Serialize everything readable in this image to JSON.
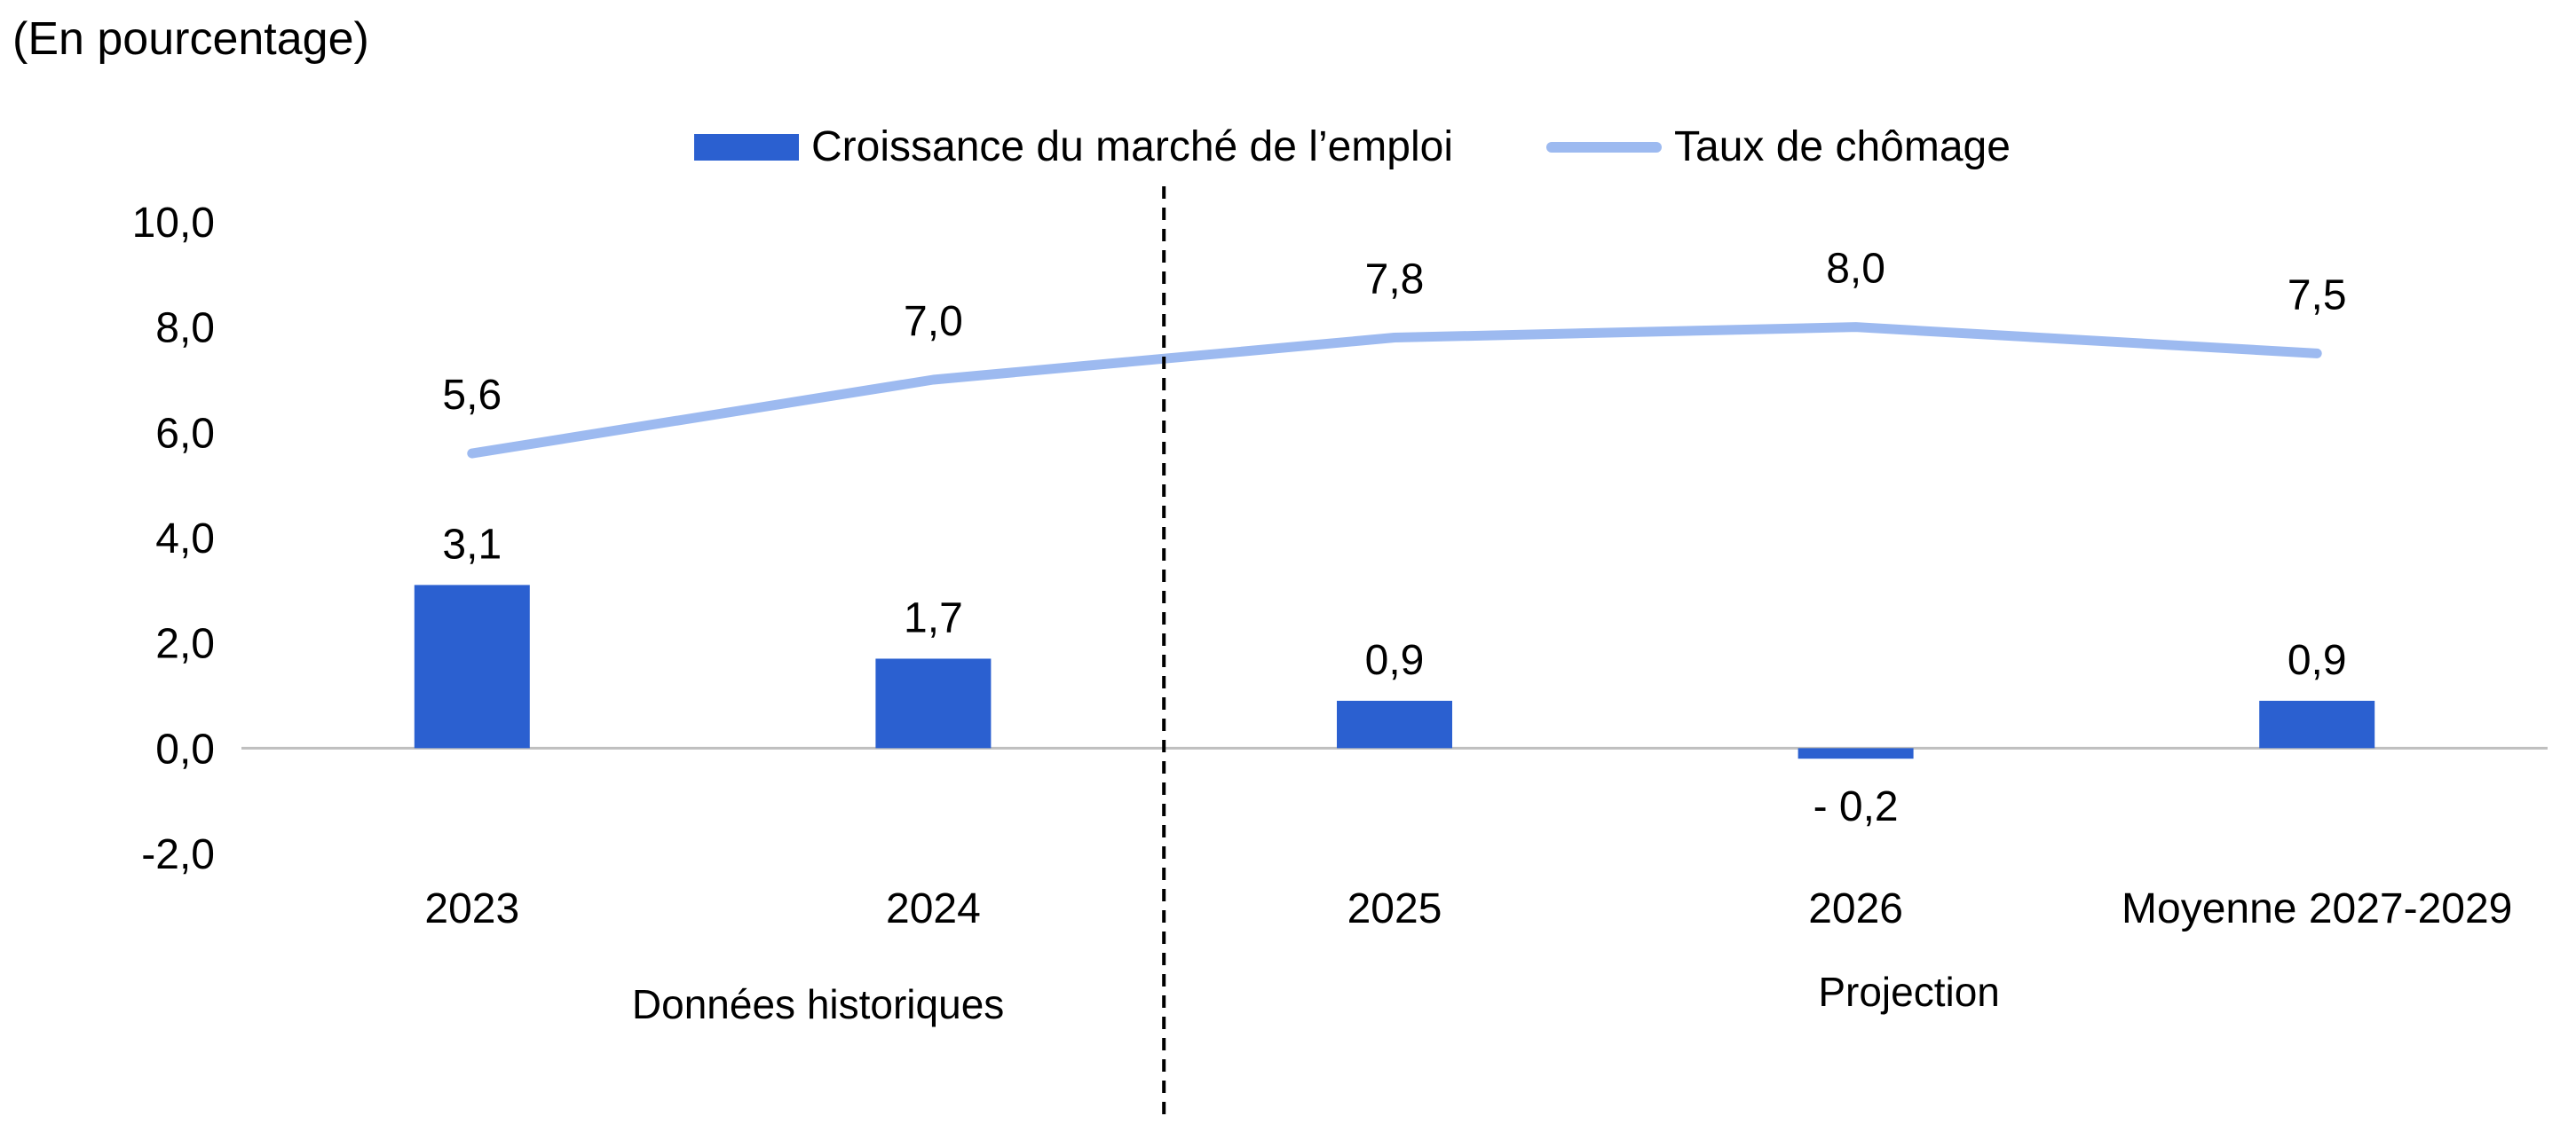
{
  "unit_label": "(En pourcentage)",
  "legend": [
    {
      "label": "Croissance du marché de l’emploi",
      "color": "#2B60D0",
      "kind": "bar"
    },
    {
      "label": "Taux de chômage",
      "color": "#9DBAF0",
      "kind": "line"
    }
  ],
  "chart_data": {
    "type": "bar",
    "categories": [
      "2023",
      "2024",
      "2025",
      "2026",
      "Moyenne 2027-2029"
    ],
    "series": [
      {
        "name": "Croissance du marché de l’emploi",
        "kind": "bar",
        "color": "#2B60D0",
        "values": [
          3.1,
          1.7,
          0.9,
          -0.2,
          0.9
        ],
        "labels": [
          "3,1",
          "1,7",
          "0,9",
          "- 0,2",
          "0,9"
        ]
      },
      {
        "name": "Taux de chômage",
        "kind": "line",
        "color": "#9DBAF0",
        "values": [
          5.6,
          7.0,
          7.8,
          8.0,
          7.5
        ],
        "labels": [
          "5,6",
          "7,0",
          "7,8",
          "8,0",
          "7,5"
        ]
      }
    ],
    "ylim": [
      -2,
      10
    ],
    "yticks": [
      10,
      8,
      6,
      4,
      2,
      0,
      -2
    ],
    "ytick_labels": [
      "10,0",
      "8,0",
      "6,0",
      "4,0",
      "2,0",
      "0,0",
      "-2,0"
    ],
    "period_labels": [
      "Données historiques",
      "Projection"
    ],
    "divider_after_category": "2024",
    "legend_position": "top",
    "grid": false
  }
}
